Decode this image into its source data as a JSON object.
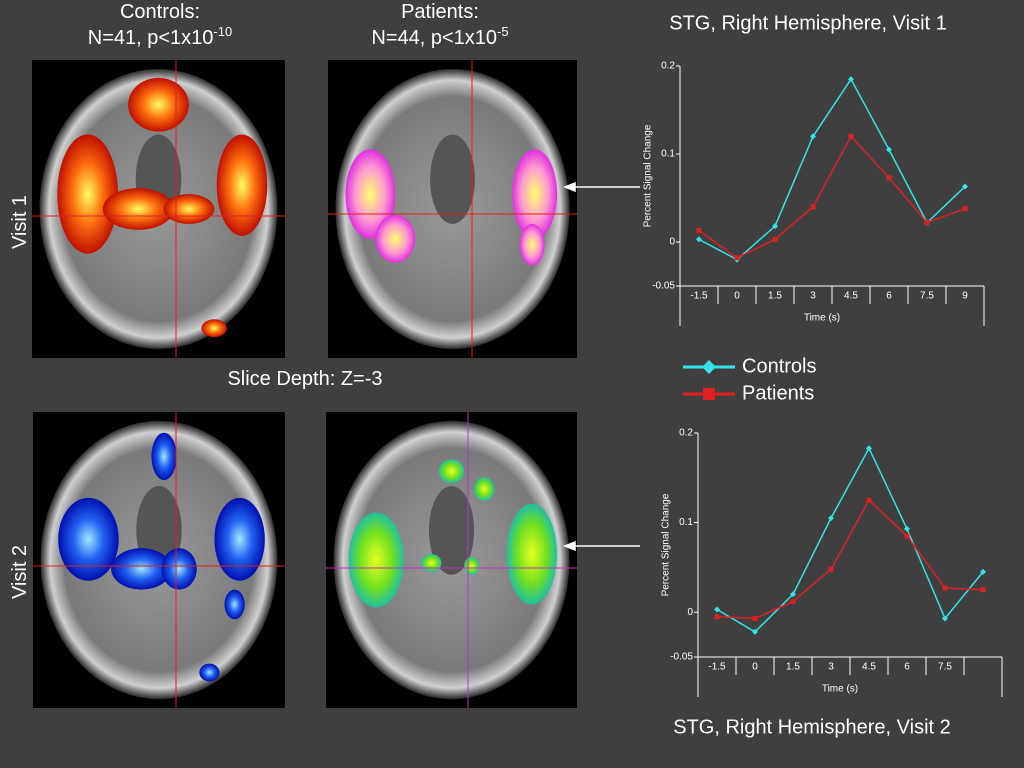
{
  "panels": {
    "controls_heading": "Controls:",
    "controls_stats": {
      "text": "N=41, p<1x10",
      "exponent": "-10"
    },
    "patients_heading": "Patients:",
    "patients_stats": {
      "text": "N=44, p<1x10",
      "exponent": "-5"
    },
    "slice_depth": "Slice Depth: Z=-3",
    "row_labels": [
      "Visit 1",
      "Visit 2"
    ]
  },
  "chart_data": [
    {
      "type": "line",
      "title": "STG, Right Hemisphere, Visit 1",
      "x_label": "Time (s)",
      "y_label": "Percent Signal Change",
      "categories": [
        "-1.5",
        "0",
        "1.5",
        "3",
        "4.5",
        "6",
        "7.5",
        "9"
      ],
      "ylim": [
        -0.05,
        0.2
      ],
      "yticks": [
        -0.05,
        0,
        0.1,
        0.2
      ],
      "series": [
        {
          "name": "Controls",
          "color": "#33e3ea",
          "values": [
            0.003,
            -0.02,
            0.018,
            0.12,
            0.185,
            0.105,
            0.022,
            0.063
          ]
        },
        {
          "name": "Patients",
          "color": "#e02020",
          "values": [
            0.013,
            -0.018,
            0.003,
            0.04,
            0.12,
            0.073,
            0.022,
            0.038
          ]
        }
      ]
    },
    {
      "type": "line",
      "title": "STG, Right Hemisphere, Visit 2",
      "x_label": "Time (s)",
      "y_label": "Percent Signal Change",
      "categories": [
        "-1.5",
        "0",
        "1.5",
        "3",
        "4.5",
        "6",
        "7.5",
        null
      ],
      "ylim": [
        -0.05,
        0.2
      ],
      "yticks": [
        -0.05,
        0,
        0.1,
        0.2
      ],
      "series": [
        {
          "color": "#33e3ea",
          "values": [
            0.003,
            -0.022,
            0.02,
            0.105,
            0.183,
            0.093,
            -0.007,
            0.045
          ]
        },
        {
          "color": "#e02020",
          "values": [
            -0.005,
            -0.007,
            0.012,
            0.048,
            0.125,
            0.085,
            0.027,
            0.025
          ]
        }
      ]
    }
  ]
}
